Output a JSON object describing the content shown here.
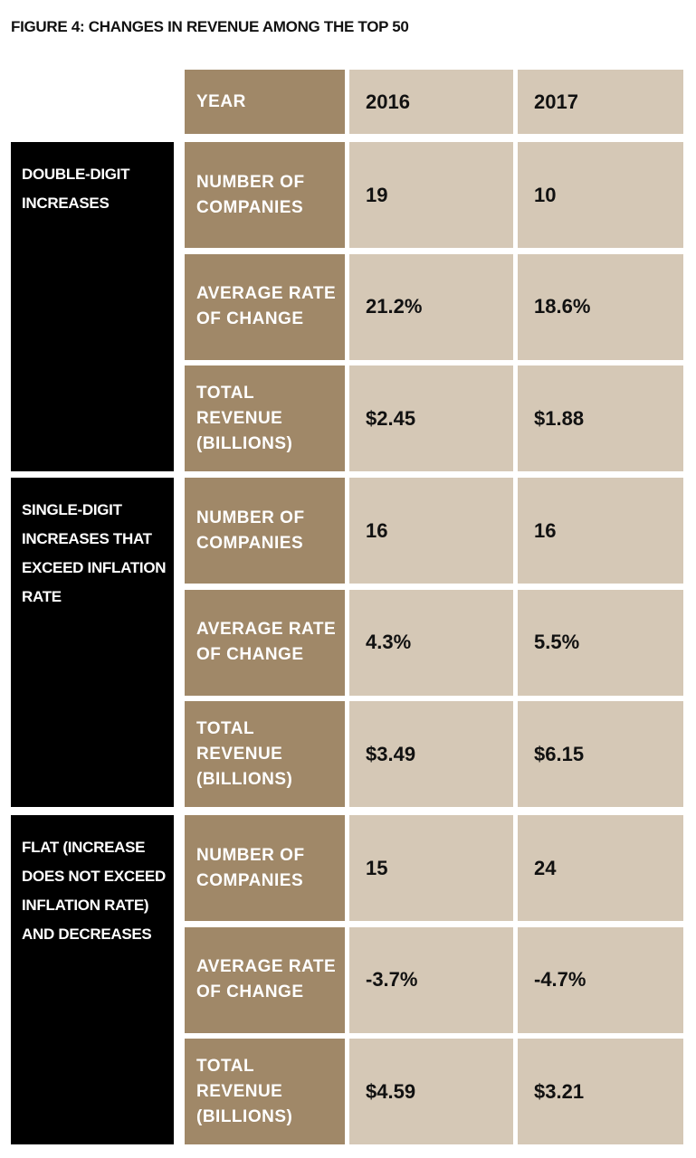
{
  "title": "FIGURE 4: CHANGES IN REVENUE AMONG THE TOP 50",
  "table": {
    "header": [
      "YEAR",
      "2016",
      "2017"
    ],
    "groups": [
      {
        "label": "DOUBLE-DIGIT\nINCREASES",
        "rows": [
          [
            "NUMBER OF\nCOMPANIES",
            "19",
            "10"
          ],
          [
            "AVERAGE RATE\nOF CHANGE",
            "21.2%",
            "18.6%"
          ],
          [
            "TOTAL\nREVENUE\n(BILLIONS)",
            "$2.45",
            "$1.88"
          ]
        ]
      },
      {
        "label": "SINGLE-DIGIT\nINCREASES THAT\nEXCEED INFLATION\nRATE",
        "rows": [
          [
            "NUMBER OF\nCOMPANIES",
            "16",
            "16"
          ],
          [
            "AVERAGE RATE\nOF CHANGE",
            "4.3%",
            "5.5%"
          ],
          [
            "TOTAL\nREVENUE\n(BILLIONS)",
            "$3.49",
            "$6.15"
          ]
        ]
      },
      {
        "label": "FLAT (INCREASE\nDOES NOT EXCEED\nINFLATION RATE)\nAND DECREASES",
        "rows": [
          [
            "NUMBER OF\nCOMPANIES",
            "15",
            "24"
          ],
          [
            "AVERAGE RATE\nOF CHANGE",
            "-3.7%",
            "-4.7%"
          ],
          [
            "TOTAL\nREVENUE\n(BILLIONS)",
            "$4.59",
            "$3.21"
          ]
        ]
      }
    ]
  }
}
